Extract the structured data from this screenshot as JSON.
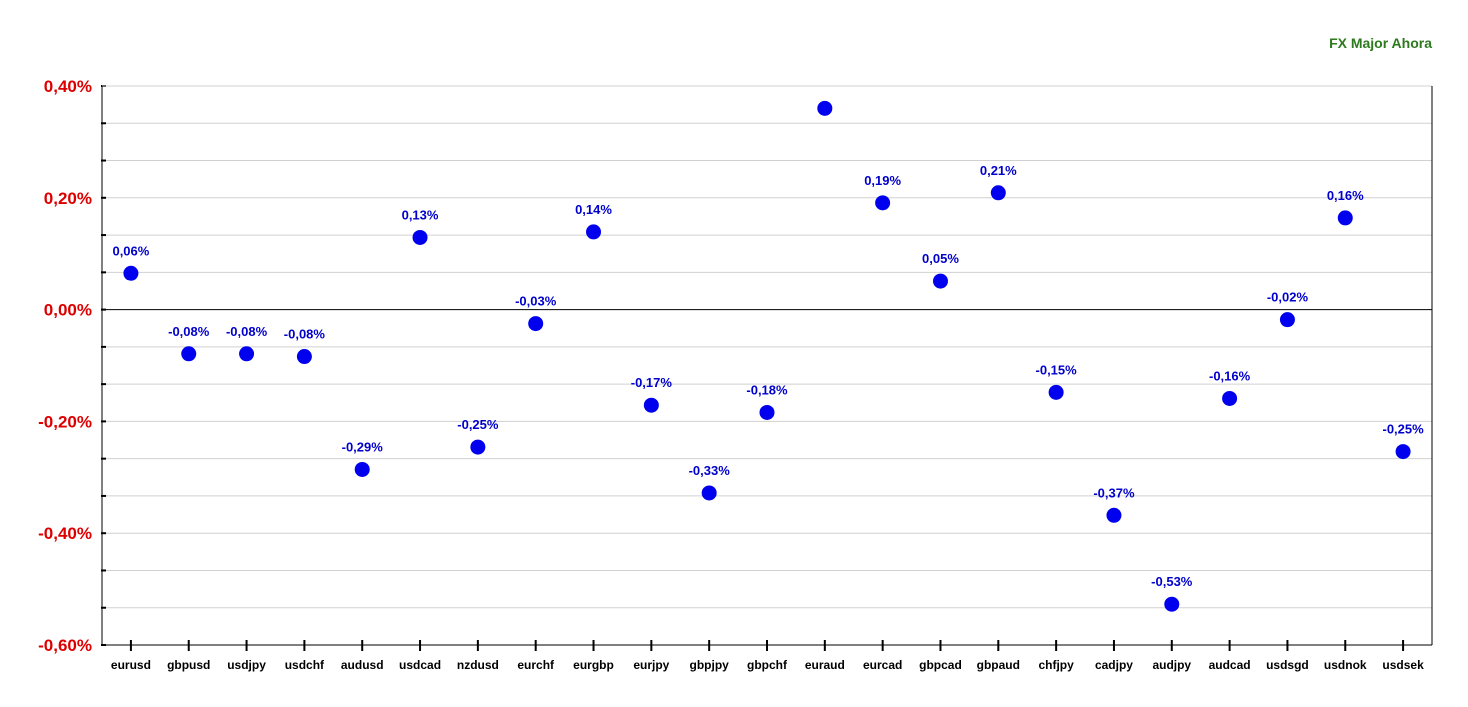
{
  "chart_data": {
    "type": "scatter",
    "title": "FX Major Ahora",
    "categories": [
      "eurusd",
      "gbpusd",
      "usdjpy",
      "usdchf",
      "audusd",
      "usdcad",
      "nzdusd",
      "eurchf",
      "eurgbp",
      "eurjpy",
      "gbpjpy",
      "gbpchf",
      "euraud",
      "eurcad",
      "gbpcad",
      "gbpaud",
      "chfjpy",
      "cadjpy",
      "audjpy",
      "audcad",
      "usdsgd",
      "usdnok",
      "usdsek"
    ],
    "values": [
      0.065,
      -0.079,
      -0.079,
      -0.084,
      -0.286,
      0.129,
      -0.246,
      -0.025,
      0.139,
      -0.171,
      -0.328,
      -0.184,
      0.36,
      0.191,
      0.051,
      0.209,
      -0.148,
      -0.368,
      -0.527,
      -0.159,
      -0.018,
      0.164,
      -0.254
    ],
    "labels": [
      "0,06%",
      "-0,08%",
      "-0,08%",
      "-0,08%",
      "-0,29%",
      "0,13%",
      "-0,25%",
      "-0,03%",
      "0,14%",
      "-0,17%",
      "-0,33%",
      "-0,18%",
      "",
      "0,19%",
      "0,05%",
      "0,21%",
      "-0,15%",
      "-0,37%",
      "-0,53%",
      "-0,16%",
      "-0,02%",
      "0,16%",
      "-0,25%"
    ],
    "ylim": [
      -0.6,
      0.4
    ],
    "yticks": [
      0.4,
      0.2,
      0.0,
      -0.2,
      -0.4,
      -0.6
    ],
    "ytick_labels": [
      "0,40%",
      "0,20%",
      "0,00%",
      "-0,20%",
      "-0,40%",
      "-0,60%"
    ],
    "minor_step": 0.0667,
    "grid": true,
    "xlabel": "",
    "ylabel": "",
    "colors": {
      "marker": "#0000ee",
      "data_label": "#0000cc",
      "ytick_label": "#dd0000",
      "title": "#2d7a1e",
      "grid": "#d0d0d0",
      "zero_line": "#000000",
      "axis": "#000000"
    }
  }
}
